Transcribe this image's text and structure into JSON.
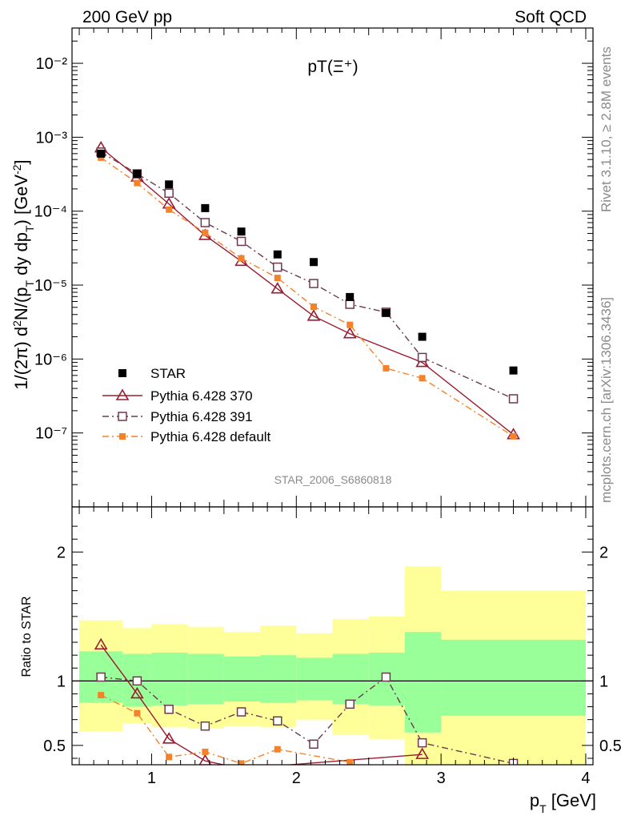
{
  "header": {
    "left": "200 GeV pp",
    "right": "Soft QCD",
    "rivet": "Rivet 3.1.10, ≥ 2.8M events",
    "source": "mcplots.cern.ch [arXiv:1306.3436]",
    "analysis": "STAR_2006_S6860818"
  },
  "colors": {
    "star": "#000000",
    "p370": "#9b1b30",
    "p391": "#6b3a4e",
    "pdef": "#f5822a",
    "band_inner": "#99ff99",
    "band_outer": "#ffff99"
  },
  "chart_data": [
    {
      "type": "scatter",
      "title": "pT(Ξ⁺)",
      "ylabel": "1/(2π) d²N/(p_T dy dp_T) [GeV⁻²]",
      "xlabel": "p_T [GeV]",
      "xlim": [
        0.45,
        4.05
      ],
      "ylim": [
        1e-08,
        0.03
      ],
      "yscale": "log",
      "y_tick_labels": [
        "10⁻⁷",
        "10⁻⁶",
        "10⁻⁵",
        "10⁻⁴",
        "10⁻³",
        "10⁻²"
      ],
      "legend_position": "bottom-left",
      "series": [
        {
          "name": "STAR",
          "marker": "filled-square",
          "x": [
            0.65,
            0.9,
            1.12,
            1.37,
            1.62,
            1.87,
            2.12,
            2.37,
            2.62,
            2.87,
            3.5
          ],
          "y": [
            0.0006,
            0.00032,
            0.00023,
            0.00011,
            5.3e-05,
            2.6e-05,
            2.05e-05,
            6.9e-06,
            4.2e-06,
            2e-06,
            7e-07
          ]
        },
        {
          "name": "Pythia 6.428 370",
          "marker": "open-triangle",
          "line": "solid",
          "x": [
            0.65,
            0.9,
            1.12,
            1.37,
            1.62,
            1.87,
            2.12,
            2.37,
            2.87,
            3.5
          ],
          "y": [
            0.00072,
            0.00029,
            0.000125,
            4.7e-05,
            2.1e-05,
            8.9e-06,
            3.8e-06,
            2.2e-06,
            9e-07,
            9.5e-08
          ]
        },
        {
          "name": "Pythia 6.428 391",
          "marker": "open-square",
          "line": "dash-dot",
          "x": [
            0.65,
            0.9,
            1.12,
            1.37,
            1.62,
            1.87,
            2.12,
            2.37,
            2.62,
            2.87,
            3.5
          ],
          "y": [
            0.00063,
            0.00032,
            0.000175,
            7e-05,
            3.9e-05,
            1.75e-05,
            1.05e-05,
            5.5e-06,
            4.3e-06,
            1.05e-06,
            2.9e-07
          ]
        },
        {
          "name": "Pythia 6.428 default",
          "marker": "filled-square-small",
          "line": "dash-dot",
          "x": [
            0.65,
            0.9,
            1.12,
            1.37,
            1.62,
            1.87,
            2.12,
            2.37,
            2.62,
            2.87,
            3.5
          ],
          "y": [
            0.00053,
            0.00024,
            0.000105,
            5.1e-05,
            2.3e-05,
            1.25e-05,
            5.1e-06,
            2.9e-06,
            7.5e-07,
            5.5e-07,
            9e-08
          ]
        }
      ]
    },
    {
      "type": "scatter",
      "ylabel": "Ratio to STAR",
      "xlabel": "p_T [GeV]",
      "xlim": [
        0.45,
        4.05
      ],
      "ylim": [
        0.35,
        2.35
      ],
      "x_ticks": [
        1,
        2,
        3,
        4
      ],
      "y_ticks": [
        0.5,
        1,
        2
      ],
      "bands": {
        "edges": [
          0.5,
          0.8,
          1.0,
          1.25,
          1.5,
          1.75,
          2.0,
          2.25,
          2.5,
          2.75,
          3.0,
          4.0
        ],
        "inner_low": [
          0.83,
          0.8,
          0.81,
          0.82,
          0.84,
          0.83,
          0.85,
          0.82,
          0.81,
          0.6,
          0.73
        ],
        "inner_high": [
          1.23,
          1.21,
          1.22,
          1.21,
          1.19,
          1.2,
          1.18,
          1.21,
          1.22,
          1.38,
          1.32
        ],
        "outer_low": [
          0.61,
          0.67,
          0.64,
          0.63,
          0.65,
          0.64,
          0.7,
          0.58,
          0.55,
          0.0,
          0.0
        ],
        "outer_high": [
          1.47,
          1.41,
          1.44,
          1.42,
          1.38,
          1.43,
          1.37,
          1.48,
          1.5,
          1.89,
          1.7
        ]
      },
      "series": [
        {
          "name": "Pythia 6.428 370",
          "x": [
            0.65,
            0.9,
            1.12,
            1.37,
            1.62,
            2.87
          ],
          "y": [
            1.28,
            0.9,
            0.55,
            0.38,
            0.32,
            0.43
          ]
        },
        {
          "name": "Pythia 6.428 391",
          "x": [
            0.65,
            0.9,
            1.12,
            1.37,
            1.62,
            1.87,
            2.12,
            2.37,
            2.62,
            2.87,
            3.5
          ],
          "y": [
            1.03,
            1.0,
            0.78,
            0.65,
            0.76,
            0.69,
            0.51,
            0.82,
            1.03,
            0.52,
            0.36
          ]
        },
        {
          "name": "Pythia 6.428 default",
          "x": [
            0.65,
            0.9,
            1.12,
            1.37,
            1.62,
            1.87,
            2.37
          ],
          "y": [
            0.89,
            0.75,
            0.41,
            0.45,
            0.36,
            0.47,
            0.37
          ]
        }
      ]
    }
  ]
}
